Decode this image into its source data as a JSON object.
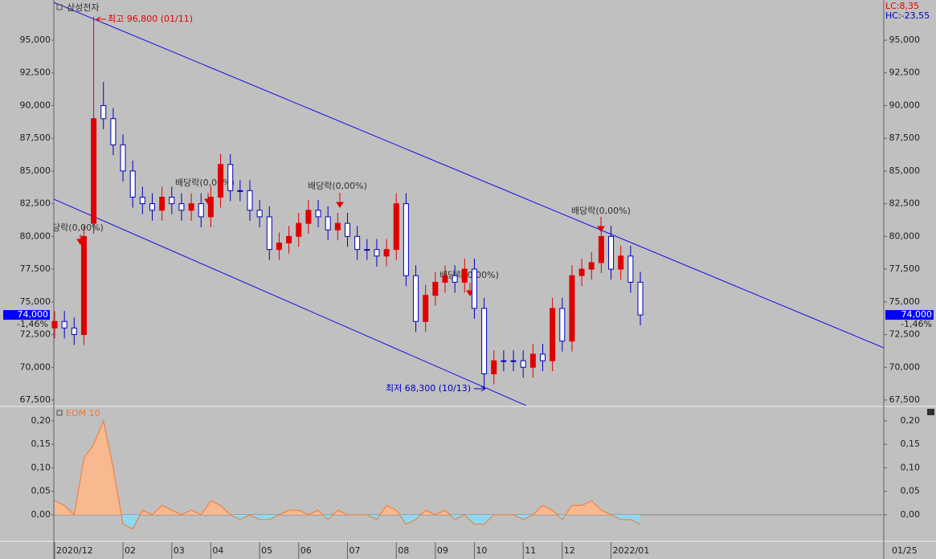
{
  "chart_data": [
    {
      "type": "candlestick",
      "title": "삼성전자",
      "categories": [
        "2020/12",
        null,
        null,
        null,
        null,
        null,
        null,
        "02",
        null,
        null,
        null,
        null,
        "03",
        null,
        null,
        null,
        "04",
        null,
        null,
        null,
        null,
        "05",
        null,
        null,
        null,
        "06",
        null,
        null,
        null,
        null,
        "07",
        null,
        null,
        null,
        null,
        "08",
        null,
        null,
        null,
        "09",
        null,
        null,
        null,
        "10",
        null,
        null,
        null,
        null,
        "11",
        null,
        null,
        null,
        "12",
        null,
        null,
        null,
        null,
        "2022/01",
        null,
        null,
        null
      ],
      "open": [
        73000,
        73500,
        73000,
        72500,
        81000,
        90000,
        89000,
        87000,
        85000,
        83000,
        82500,
        82000,
        83000,
        82500,
        82000,
        82500,
        81500,
        83000,
        85500,
        83500,
        83500,
        82000,
        81500,
        79000,
        79500,
        80000,
        81000,
        82000,
        81500,
        80500,
        81000,
        80000,
        79000,
        79000,
        78500,
        79000,
        82500,
        77000,
        73500,
        75500,
        76500,
        77000,
        76500,
        77500,
        74500,
        69500,
        70500,
        70500,
        70500,
        70000,
        71000,
        70500,
        74500,
        72000,
        77000,
        77500,
        78000,
        80000,
        77500,
        78500,
        76500
      ],
      "high": [
        74300,
        74300,
        73800,
        80800,
        96800,
        91800,
        89800,
        87800,
        85800,
        83800,
        83300,
        83800,
        83800,
        83300,
        83300,
        83300,
        83800,
        86300,
        86300,
        84300,
        84300,
        82800,
        82300,
        80300,
        80800,
        81800,
        82800,
        82800,
        82300,
        81800,
        81800,
        80800,
        79800,
        79800,
        79800,
        83300,
        83300,
        77800,
        76300,
        77300,
        77800,
        77800,
        78300,
        78300,
        75300,
        71300,
        71300,
        71300,
        71300,
        71800,
        71800,
        75300,
        75300,
        77800,
        78300,
        78800,
        80800,
        80800,
        79300,
        79300,
        77300
      ],
      "low": [
        72200,
        72200,
        71700,
        71700,
        80200,
        88200,
        86200,
        84200,
        82200,
        81700,
        81200,
        81200,
        81700,
        81200,
        81200,
        80700,
        80700,
        82200,
        82700,
        82700,
        81200,
        80700,
        78200,
        78200,
        78700,
        79200,
        80200,
        80700,
        79700,
        79700,
        79200,
        78200,
        78200,
        77700,
        77700,
        78200,
        76200,
        72700,
        72700,
        74700,
        75700,
        75700,
        75700,
        73700,
        68300,
        68700,
        69700,
        69700,
        69200,
        69200,
        69700,
        69700,
        71200,
        71200,
        76200,
        76700,
        77200,
        76700,
        76700,
        75700,
        73200
      ],
      "close": [
        73500,
        73000,
        72500,
        80000,
        89000,
        89000,
        87000,
        85000,
        83000,
        82500,
        82000,
        83000,
        82500,
        82000,
        82500,
        81500,
        83000,
        85500,
        83500,
        83500,
        82000,
        81500,
        79000,
        79500,
        80000,
        81000,
        82000,
        81500,
        80500,
        81000,
        80000,
        79000,
        79000,
        78500,
        79000,
        82500,
        77000,
        73500,
        75500,
        76500,
        77000,
        76500,
        77500,
        74500,
        69500,
        70500,
        70500,
        70500,
        70000,
        71000,
        70500,
        74500,
        72000,
        77000,
        77500,
        78000,
        80000,
        77500,
        78500,
        76500,
        74000
      ],
      "up_color": "#e00000",
      "down_color": "#0000c0",
      "ylim": [
        67070,
        98070
      ],
      "yticks": [
        {
          "value": 67500,
          "label": "67,500"
        },
        {
          "value": 70000,
          "label": "70,000"
        },
        {
          "value": 72500,
          "label": "72,500"
        },
        {
          "value": 75000,
          "label": "75,000"
        },
        {
          "value": 77500,
          "label": "77,500"
        },
        {
          "value": 80000,
          "label": "80,000"
        },
        {
          "value": 82500,
          "label": "82,500"
        },
        {
          "value": 85000,
          "label": "85,000"
        },
        {
          "value": 87500,
          "label": "87,500"
        },
        {
          "value": 90000,
          "label": "90,000"
        },
        {
          "value": 92500,
          "label": "92,500"
        },
        {
          "value": 95000,
          "label": "95,000"
        }
      ],
      "current_price": {
        "value": 74000,
        "label": "74,000"
      },
      "change": "-1,46%",
      "high_note": "최고 96,800 (01/11)",
      "low_note": "최저 68,300 (10/13)",
      "dividend_notes": [
        "l당락(0,00%)",
        "배당락(0,00%)",
        "배당락(0,00%)",
        "배당락(0,00%)",
        "배당락(0,00%)"
      ],
      "lc": "LC:8,35",
      "hc": "HC:-23,55",
      "date_label": "01/25"
    },
    {
      "type": "area",
      "title": "EOM 10",
      "color": "#f07830",
      "fill_up": "#f8b890",
      "fill_down": "#90d8f0",
      "values": [
        0.03,
        0.02,
        0.0,
        0.12,
        0.15,
        0.2,
        0.1,
        -0.02,
        -0.03,
        0.01,
        0.0,
        0.02,
        0.01,
        0.0,
        0.01,
        0.0,
        0.03,
        0.02,
        0.0,
        -0.01,
        0.0,
        -0.01,
        -0.01,
        0.0,
        0.01,
        0.01,
        0.0,
        0.01,
        -0.01,
        0.01,
        0.0,
        0.0,
        0.0,
        -0.01,
        0.02,
        0.01,
        -0.02,
        -0.01,
        0.01,
        0.0,
        0.01,
        -0.01,
        0.0,
        -0.02,
        -0.02,
        0.0,
        0.0,
        0.0,
        -0.01,
        0.0,
        0.02,
        0.01,
        -0.01,
        0.02,
        0.02,
        0.03,
        0.01,
        0.0,
        -0.01,
        -0.01,
        -0.02
      ],
      "ylim": [
        -0.053,
        0.229
      ],
      "yticks": [
        {
          "value": 0,
          "label": "0,00"
        },
        {
          "value": 0.05,
          "label": "0,05"
        },
        {
          "value": 0.1,
          "label": "0,10"
        },
        {
          "value": 0.15,
          "label": "0,15"
        },
        {
          "value": 0.2,
          "label": "0,20"
        }
      ]
    }
  ]
}
